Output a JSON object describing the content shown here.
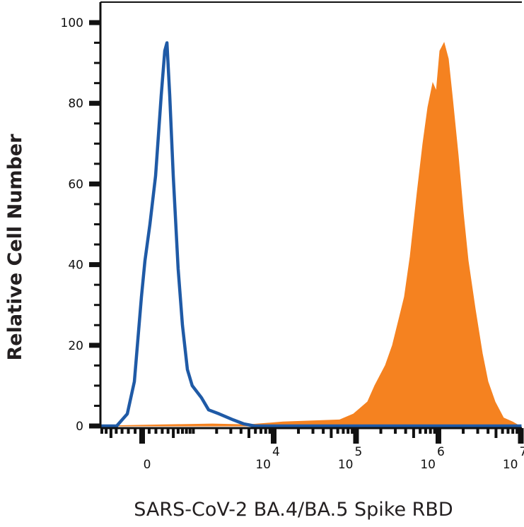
{
  "chart_data": {
    "type": "area",
    "title": "",
    "xlabel": "SARS-CoV-2 BA.4/BA.5 Spike RBD",
    "ylabel": "Relative Cell Number",
    "x_scale": "biexponential",
    "xlim": [
      -730,
      10200000
    ],
    "ylim": [
      0,
      100
    ],
    "grid": false,
    "x_ticks": [
      {
        "value": 0,
        "base": "0",
        "exp": ""
      },
      {
        "value": 10000,
        "base": "10",
        "exp": "4"
      },
      {
        "value": 100000,
        "base": "10",
        "exp": "5"
      },
      {
        "value": 1000000,
        "base": "10",
        "exp": "6"
      },
      {
        "value": 10000000,
        "base": "10",
        "exp": "7"
      }
    ],
    "y_ticks": [
      0,
      20,
      40,
      60,
      80,
      100
    ],
    "y_tick_labels": [
      "0",
      "20",
      "40",
      "60",
      "80",
      "100"
    ],
    "series": [
      {
        "style": "filled",
        "color": "#f58220",
        "x": [
          -730,
          1760,
          4806,
          12930,
          62900,
          93300,
          138400,
          168800,
          227000,
          276800,
          337000,
          387000,
          453800,
          553000,
          648000,
          744000,
          854000,
          942600,
          1040000,
          1172000,
          1319000,
          1485000,
          1740000,
          1997000,
          2294000,
          2795000,
          3406000,
          3989000,
          4862000,
          6160000,
          7965000,
          9700000
        ],
        "y": [
          0,
          0.5,
          0.3,
          1,
          1.5,
          3,
          6,
          10,
          15,
          20,
          27,
          32,
          42,
          58,
          70,
          79,
          85,
          83,
          93,
          95,
          91,
          81,
          67,
          53,
          41,
          29,
          18,
          11,
          6,
          2,
          1,
          0
        ]
      },
      {
        "style": "line",
        "color": "#1f5aa6",
        "x": [
          -730,
          -392,
          -217,
          -111,
          -10,
          40,
          111,
          195,
          284,
          342,
          380,
          431,
          499,
          601,
          700,
          826,
          965,
          1283,
          1584,
          2155,
          3225,
          4350,
          5860,
          10200000
        ],
        "y": [
          0,
          0,
          3,
          11,
          32,
          41,
          50,
          62,
          82,
          93,
          95,
          82,
          62,
          39,
          25,
          14,
          10,
          7,
          4,
          3,
          1.5,
          0.5,
          0,
          0
        ]
      }
    ]
  }
}
